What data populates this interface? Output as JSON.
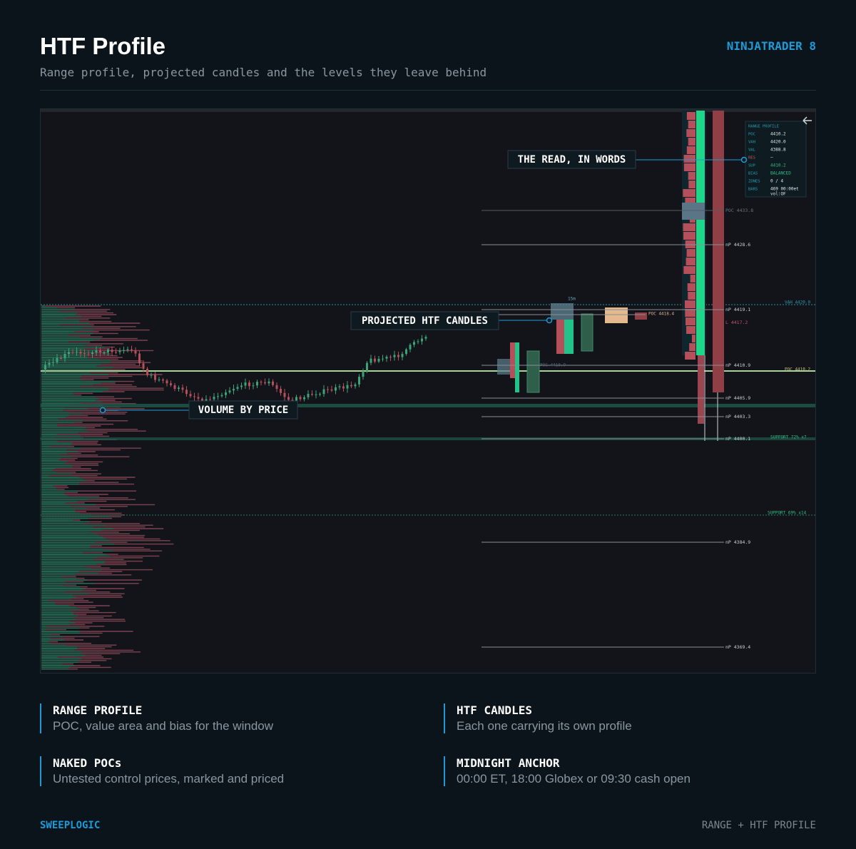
{
  "header": {
    "title": "HTF Profile",
    "subtitle": "Range profile, projected candles and the levels they leave behind",
    "brand": "NINJATRADER 8"
  },
  "screenshot": {
    "levels": [
      "POC 4433.8",
      "nP 4428.6",
      "nP 4419.1",
      "L 4417.2",
      "nP 4410.9",
      "nP 4405.9",
      "nP 4403.3",
      "nP 4400.1",
      "nP 4384.9",
      "nP 4369.4"
    ],
    "zones": [
      "VAH 4420.0",
      "POC 4410.2",
      "SUPPORT 72%  x7",
      "SUPPORT 69%  x14"
    ],
    "candle_tags": [
      "POC 4410.9",
      "POC 4418.4",
      "15m"
    ],
    "panel": {
      "title": "RANGE PROFILE",
      "rows": [
        [
          "POC",
          "4410.2"
        ],
        [
          "VAH",
          "4420.0"
        ],
        [
          "VAL",
          "4388.8"
        ],
        [
          "RES",
          "–"
        ],
        [
          "SUP",
          "4410.2"
        ],
        [
          "BIAS",
          "BALANCED"
        ],
        [
          "ZONES",
          "0 / 4"
        ],
        [
          "BARS",
          "469  00:00et"
        ]
      ],
      "note": "vol:OF"
    },
    "callouts": [
      "THE READ, IN WORDS",
      "PROJECTED HTF CANDLES",
      "VOLUME BY PRICE"
    ]
  },
  "features": [
    {
      "title": "RANGE PROFILE",
      "text": "POC, value area and bias for the window"
    },
    {
      "title": "HTF CANDLES",
      "text": "Each one carrying its own profile"
    },
    {
      "title": "NAKED POCs",
      "text": "Untested control prices, marked and priced"
    },
    {
      "title": "MIDNIGHT ANCHOR",
      "text": "00:00 ET, 18:00 Globex or 09:30 cash open"
    }
  ],
  "footer": {
    "left": "SWEEPLOGIC",
    "right": "RANGE + HTF PROFILE"
  }
}
